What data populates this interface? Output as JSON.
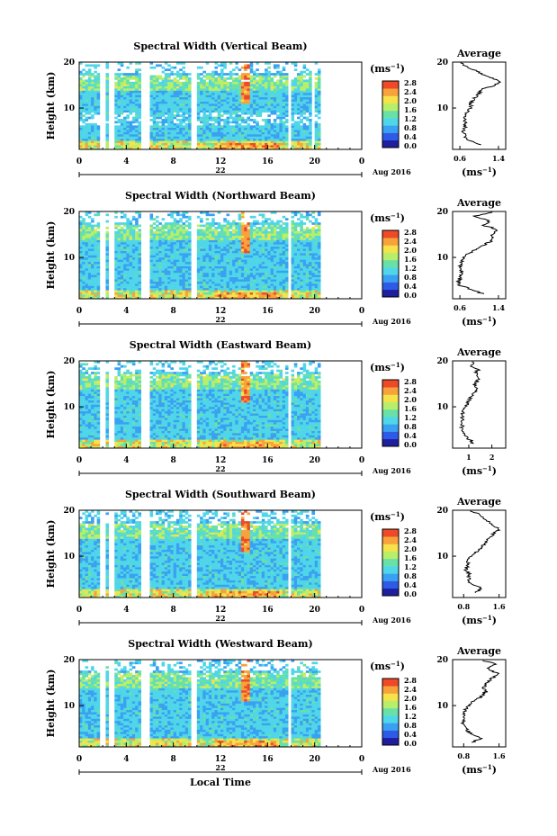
{
  "figure": {
    "date_label": "Aug 2016",
    "x_axis_label": "Local Time",
    "colorbar_unit": "(ms",
    "colorbar_exp": "−1",
    "profile_title": "Average",
    "profile_unit": "(ms",
    "profile_exp": "−1",
    "height_label": "Height (km)",
    "colorbar_ticks": [
      "0.0",
      "0.4",
      "0.8",
      "1.2",
      "1.6",
      "2.0",
      "2.4",
      "2.8"
    ],
    "colorbar_values": [
      0.0,
      0.4,
      0.8,
      1.2,
      1.6,
      2.0,
      2.4,
      2.8
    ],
    "colorscale": [
      "#1e1e9e",
      "#2d5be6",
      "#3aa0f2",
      "#4fd6e8",
      "#69e0a8",
      "#b7ef6a",
      "#f6e24a",
      "#f7a23a",
      "#ee4a2a"
    ],
    "x_ticks": [
      "0",
      "4",
      "8",
      "12",
      "16",
      "20",
      "0"
    ],
    "day_tick": "22",
    "y_ticks": [
      "20",
      "10"
    ]
  },
  "chart_data": [
    {
      "type": "heatmap",
      "title": "Spectral Width (Vertical Beam)",
      "xlabel": "",
      "ylabel": "Height (km)",
      "xlim": [
        0,
        24
      ],
      "ylim": [
        1,
        20
      ],
      "colorbar_range": [
        0.0,
        2.8
      ],
      "gaps_hours": [
        [
          1.7,
          2.2
        ],
        [
          2.6,
          2.9
        ],
        [
          5.2,
          6.0
        ],
        [
          9.5,
          10.1
        ],
        [
          17.7,
          18.0
        ],
        [
          19.8,
          20.0
        ],
        [
          20.5,
          24
        ]
      ],
      "profile": {
        "title": "Average",
        "xticks": [
          "0.6",
          "1.4"
        ],
        "xlim": [
          0.45,
          1.55
        ],
        "heights": [
          2,
          3,
          4,
          5,
          6,
          7,
          8,
          9,
          10,
          11,
          12,
          13,
          14,
          15,
          16,
          17,
          18,
          19,
          20
        ],
        "values": [
          1.05,
          0.8,
          0.7,
          0.68,
          0.72,
          0.7,
          0.7,
          0.72,
          0.85,
          0.8,
          0.9,
          0.98,
          1.05,
          1.35,
          1.42,
          1.15,
          0.95,
          0.75,
          0.6
        ]
      }
    },
    {
      "type": "heatmap",
      "title": "Spectral Width (Northward Beam)",
      "xlabel": "",
      "ylabel": "Height (km)",
      "xlim": [
        0,
        24
      ],
      "ylim": [
        1,
        20
      ],
      "colorbar_range": [
        0.0,
        2.8
      ],
      "gaps_hours": [
        [
          1.7,
          2.2
        ],
        [
          2.6,
          2.9
        ],
        [
          5.2,
          6.0
        ],
        [
          9.5,
          10.1
        ],
        [
          17.7,
          18.0
        ],
        [
          20.5,
          24
        ]
      ],
      "profile": {
        "title": "Average",
        "xticks": [
          "0.6",
          "1.4"
        ],
        "xlim": [
          0.45,
          1.55
        ],
        "heights": [
          2,
          3,
          4,
          5,
          6,
          7,
          8,
          9,
          10,
          11,
          12,
          13,
          14,
          15,
          16,
          17,
          18,
          19,
          20
        ],
        "values": [
          1.1,
          0.85,
          0.6,
          0.58,
          0.6,
          0.65,
          0.62,
          0.64,
          0.7,
          0.8,
          0.95,
          1.15,
          1.3,
          1.25,
          1.4,
          1.1,
          1.2,
          0.9,
          1.3
        ]
      }
    },
    {
      "type": "heatmap",
      "title": "Spectral Width (Eastward Beam)",
      "xlabel": "",
      "ylabel": "Height (km)",
      "xlim": [
        0,
        24
      ],
      "ylim": [
        1,
        20
      ],
      "colorbar_range": [
        0.0,
        2.8
      ],
      "gaps_hours": [
        [
          1.7,
          2.2
        ],
        [
          2.6,
          2.9
        ],
        [
          5.2,
          6.0
        ],
        [
          9.5,
          10.1
        ],
        [
          17.7,
          18.0
        ],
        [
          20.5,
          24
        ]
      ],
      "profile": {
        "title": "Average",
        "xticks": [
          "1",
          "2"
        ],
        "xlim": [
          0.3,
          2.6
        ],
        "heights": [
          2,
          3,
          4,
          5,
          6,
          7,
          8,
          9,
          10,
          11,
          12,
          13,
          14,
          15,
          16,
          17,
          18,
          19,
          20
        ],
        "values": [
          1.2,
          1.0,
          0.75,
          0.7,
          0.72,
          0.7,
          0.72,
          0.75,
          0.8,
          1.0,
          1.05,
          1.2,
          1.35,
          1.25,
          1.45,
          1.3,
          1.4,
          1.1,
          1.2
        ]
      }
    },
    {
      "type": "heatmap",
      "title": "Spectral Width (Southward Beam)",
      "xlabel": "",
      "ylabel": "Height (km)",
      "xlim": [
        0,
        24
      ],
      "ylim": [
        1,
        20
      ],
      "colorbar_range": [
        0.0,
        2.8
      ],
      "gaps_hours": [
        [
          1.7,
          2.2
        ],
        [
          2.6,
          2.9
        ],
        [
          5.2,
          6.0
        ],
        [
          9.5,
          10.1
        ],
        [
          17.7,
          18.0
        ],
        [
          20.5,
          24
        ]
      ],
      "profile": {
        "title": "Average",
        "xticks": [
          "0.8",
          "1.6"
        ],
        "xlim": [
          0.55,
          1.75
        ],
        "heights": [
          2,
          3,
          4,
          5,
          6,
          7,
          8,
          9,
          10,
          11,
          12,
          13,
          14,
          15,
          16,
          17,
          18,
          19,
          20
        ],
        "values": [
          1.05,
          1.2,
          0.95,
          0.9,
          0.95,
          0.85,
          0.88,
          0.9,
          0.98,
          1.1,
          1.2,
          1.3,
          1.4,
          1.5,
          1.6,
          1.45,
          1.3,
          1.2,
          0.9
        ]
      }
    },
    {
      "type": "heatmap",
      "title": "Spectral Width (Westward Beam)",
      "xlabel": "Local Time",
      "ylabel": "Height (km)",
      "xlim": [
        0,
        24
      ],
      "ylim": [
        1,
        20
      ],
      "colorbar_range": [
        0.0,
        2.8
      ],
      "gaps_hours": [
        [
          1.7,
          2.2
        ],
        [
          2.6,
          2.9
        ],
        [
          5.2,
          6.0
        ],
        [
          9.5,
          10.1
        ],
        [
          17.7,
          18.0
        ],
        [
          20.5,
          24
        ]
      ],
      "profile": {
        "title": "Average",
        "xticks": [
          "0.8",
          "1.6"
        ],
        "xlim": [
          0.55,
          1.75
        ],
        "heights": [
          2,
          3,
          4,
          5,
          6,
          7,
          8,
          9,
          10,
          11,
          12,
          13,
          14,
          15,
          16,
          17,
          18,
          19,
          20
        ],
        "values": [
          1.0,
          1.2,
          0.95,
          0.85,
          0.8,
          0.78,
          0.8,
          0.82,
          0.9,
          1.05,
          1.2,
          1.3,
          1.25,
          1.35,
          1.45,
          1.55,
          1.35,
          1.5,
          1.2
        ]
      }
    }
  ]
}
